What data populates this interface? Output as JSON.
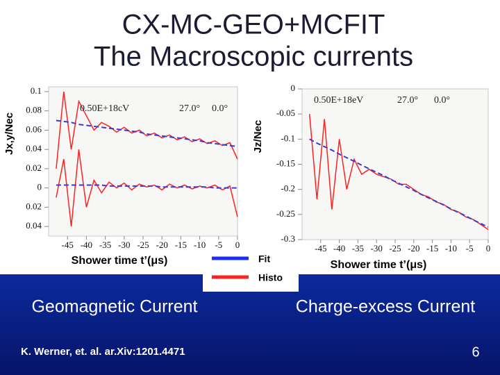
{
  "title": [
    "CX-MC-GEO+MCFIT",
    "The Macroscopic currents"
  ],
  "chart_data": [
    {
      "type": "line",
      "ylabel": "Jx,y/Nec",
      "xlabel": "Shower time t’(μs)",
      "annotations": [
        "0.50E+18cV",
        "27.0°",
        "0.0°"
      ],
      "x": [
        -48,
        -46,
        -44,
        -42,
        -40,
        -38,
        -36,
        -34,
        -32,
        -30,
        -28,
        -26,
        -24,
        -22,
        -20,
        -18,
        -16,
        -14,
        -12,
        -10,
        -8,
        -6,
        -4,
        -2,
        0
      ],
      "xlim": [
        -50,
        0
      ],
      "xticks": [
        -45,
        -40,
        -35,
        -30,
        -25,
        -20,
        -15,
        -10,
        -5,
        0
      ],
      "ylim": [
        -0.05,
        0.105
      ],
      "yticks": [
        0.1,
        0.08,
        0.06,
        0.04,
        0.02,
        0,
        {
          "value": -0.02,
          "label": "0.02"
        },
        {
          "value": -0.04,
          "label": "0.04"
        }
      ],
      "series": [
        {
          "color": "#ff2020",
          "style": "solid",
          "values": [
            0.02,
            0.1,
            0.04,
            0.09,
            0.075,
            0.06,
            0.068,
            0.064,
            0.058,
            0.063,
            0.057,
            0.06,
            0.054,
            0.057,
            0.052,
            0.055,
            0.05,
            0.053,
            0.048,
            0.051,
            0.046,
            0.049,
            0.044,
            0.047,
            0.03
          ]
        },
        {
          "color": "#ff2020",
          "style": "solid",
          "values": [
            -0.01,
            0.03,
            -0.04,
            0.04,
            -0.02,
            0.008,
            -0.005,
            0.006,
            0.0,
            0.005,
            -0.002,
            0.004,
            0.001,
            0.003,
            -0.002,
            0.004,
            0.0,
            0.003,
            -0.001,
            0.002,
            0.0,
            0.003,
            -0.002,
            0.002,
            -0.03
          ]
        },
        {
          "color": "#3a3ad0",
          "style": "dashed",
          "values": [
            0.07,
            0.069,
            0.068,
            0.066,
            0.065,
            0.064,
            0.063,
            0.062,
            0.061,
            0.06,
            0.059,
            0.058,
            0.056,
            0.055,
            0.054,
            0.053,
            0.052,
            0.051,
            0.05,
            0.049,
            0.047,
            0.046,
            0.045,
            0.044,
            0.043
          ]
        },
        {
          "color": "#3a3ad0",
          "style": "dashed",
          "values": [
            0.003,
            0.003,
            0.003,
            0.003,
            0.003,
            0.003,
            0.003,
            0.002,
            0.002,
            0.002,
            0.002,
            0.002,
            0.002,
            0.002,
            0.001,
            0.001,
            0.001,
            0.001,
            0.001,
            0.001,
            0.001,
            0,
            0,
            0,
            0
          ]
        }
      ]
    },
    {
      "type": "line",
      "ylabel": "Jz/Nec",
      "xlabel": "Shower time t’(μs)",
      "annotations": [
        "0.50E+18eV",
        "27.0°",
        "0.0°"
      ],
      "x": [
        -48,
        -46,
        -44,
        -42,
        -40,
        -38,
        -36,
        -34,
        -32,
        -30,
        -28,
        -26,
        -24,
        -22,
        -20,
        -18,
        -16,
        -14,
        -12,
        -10,
        -8,
        -6,
        -4,
        -2,
        0
      ],
      "xlim": [
        -50,
        0
      ],
      "xticks": [
        -45,
        -40,
        -35,
        -30,
        -25,
        -20,
        -15,
        -10,
        -5,
        0
      ],
      "ylim": [
        -0.3,
        0
      ],
      "yticks": [
        0,
        -0.05,
        -0.1,
        -0.15,
        -0.2,
        -0.25,
        -0.3
      ],
      "series": [
        {
          "color": "#ff2020",
          "style": "solid",
          "values": [
            -0.05,
            -0.22,
            -0.06,
            -0.24,
            -0.1,
            -0.2,
            -0.14,
            -0.17,
            -0.16,
            -0.17,
            -0.175,
            -0.18,
            -0.19,
            -0.19,
            -0.2,
            -0.21,
            -0.215,
            -0.225,
            -0.23,
            -0.24,
            -0.245,
            -0.255,
            -0.26,
            -0.27,
            -0.28
          ]
        },
        {
          "color": "#3a3ad0",
          "style": "dashed",
          "values": [
            -0.1,
            -0.108,
            -0.115,
            -0.122,
            -0.13,
            -0.137,
            -0.144,
            -0.152,
            -0.159,
            -0.166,
            -0.173,
            -0.181,
            -0.188,
            -0.195,
            -0.202,
            -0.21,
            -0.217,
            -0.224,
            -0.231,
            -0.239,
            -0.246,
            -0.253,
            -0.261,
            -0.268,
            -0.275
          ]
        }
      ]
    }
  ],
  "legend": [
    {
      "label": "Fit",
      "color": "#1a2cff"
    },
    {
      "label": "Histo",
      "color": "#ff2020"
    }
  ],
  "captions": [
    "Geomagnetic Current",
    "Charge-excess Current"
  ],
  "footer": {
    "citation": "K. Werner, et. al. ar.Xiv:1201.4471",
    "page": "6"
  }
}
